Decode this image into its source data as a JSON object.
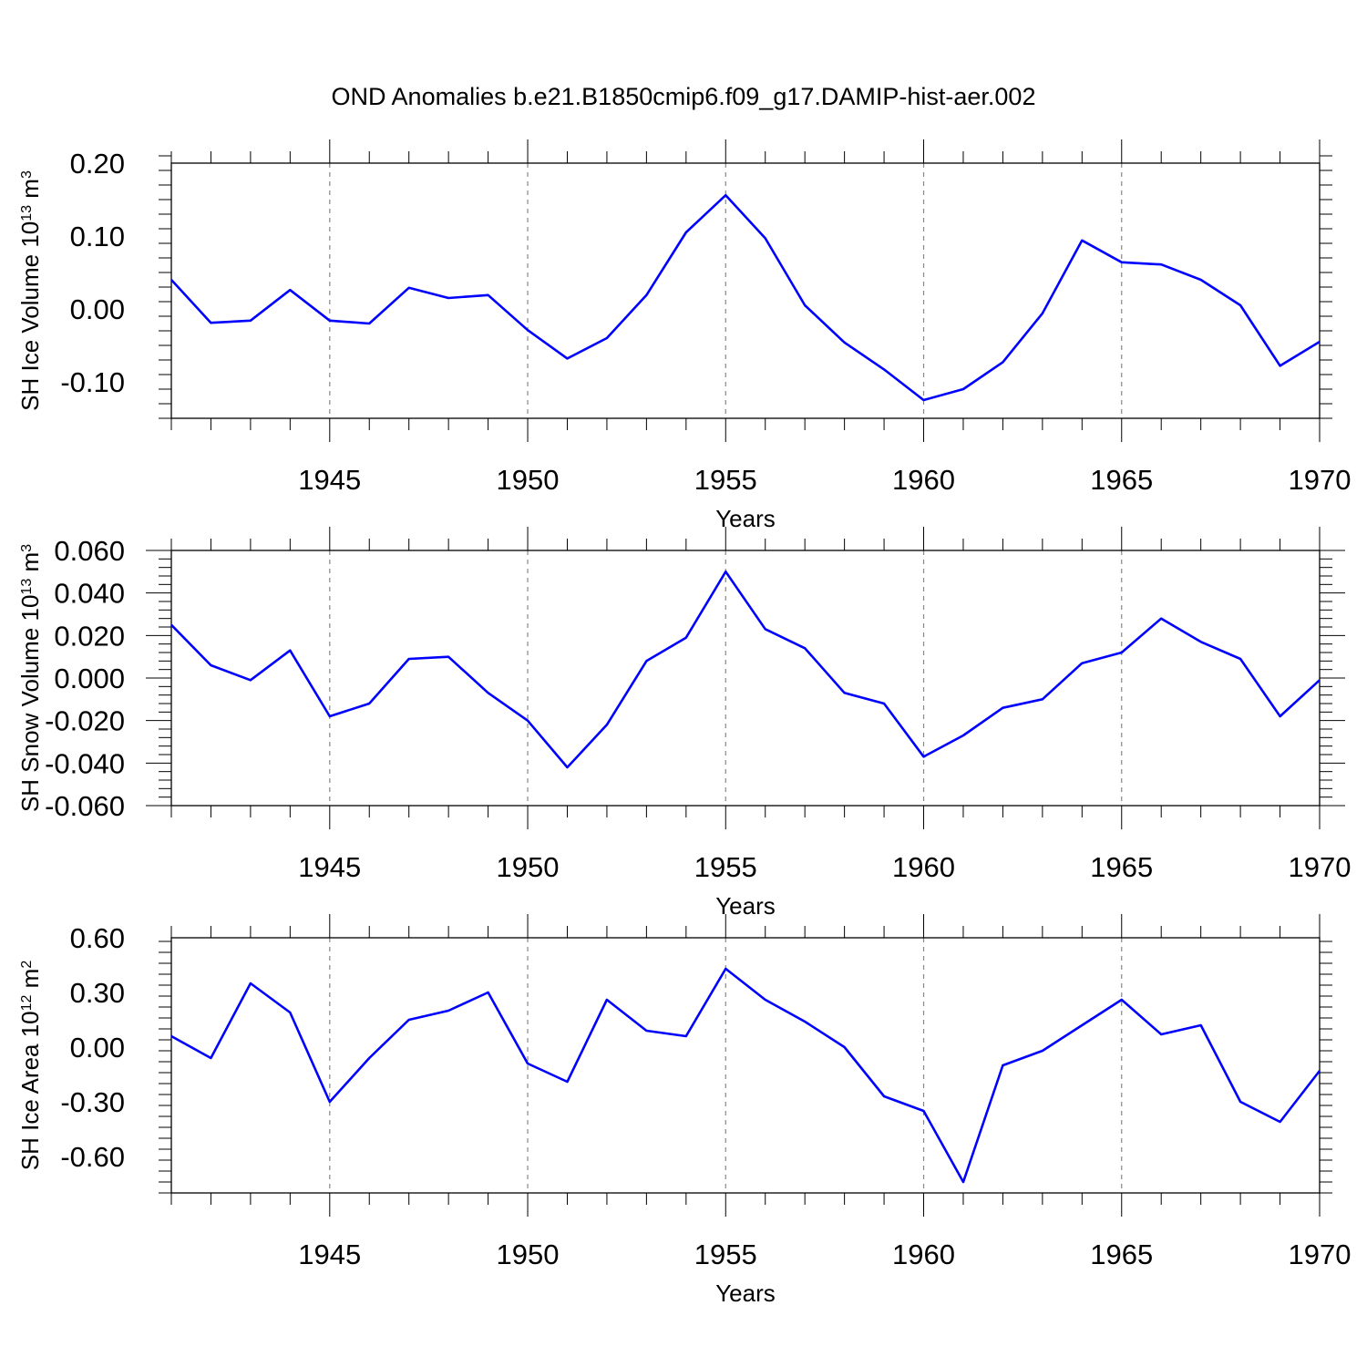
{
  "title": "OND Anomalies b.e21.B1850cmip6.f09_g17.DAMIP-hist-aer.002",
  "line_color": "#0000ff",
  "chart_data": [
    {
      "type": "line",
      "ylabel_main": "SH Ice Volume 10",
      "ylabel_exp": "13",
      "ylabel_unit": "m",
      "ylabel_unit_exp": "3",
      "xlabel": "Years",
      "xlim": [
        1941,
        1970
      ],
      "ylim": [
        -0.15,
        0.2
      ],
      "yticks": [
        0.2,
        0.1,
        0.0,
        -0.1
      ],
      "ytick_labels": [
        "0.20",
        "0.10",
        "0.00",
        "-0.10"
      ],
      "xticks": [
        1945,
        1950,
        1955,
        1960,
        1965,
        1970
      ],
      "xtick_labels": [
        "1945",
        "1950",
        "1955",
        "1960",
        "1965",
        "1970"
      ],
      "x": [
        1941,
        1942,
        1943,
        1944,
        1945,
        1946,
        1947,
        1948,
        1949,
        1950,
        1951,
        1952,
        1953,
        1954,
        1955,
        1956,
        1957,
        1958,
        1959,
        1960,
        1961,
        1962,
        1963,
        1964,
        1965,
        1966,
        1967,
        1968,
        1969,
        1970
      ],
      "values": [
        0.04,
        -0.019,
        -0.016,
        0.026,
        -0.016,
        -0.02,
        0.029,
        0.015,
        0.019,
        -0.029,
        -0.068,
        -0.04,
        0.019,
        0.105,
        0.156,
        0.097,
        0.005,
        -0.046,
        -0.083,
        -0.125,
        -0.11,
        -0.073,
        -0.006,
        0.094,
        0.064,
        0.061,
        0.04,
        0.005,
        -0.078,
        -0.045
      ]
    },
    {
      "type": "line",
      "ylabel_main": "SH Snow Volume 10",
      "ylabel_exp": "13",
      "ylabel_unit": "m",
      "ylabel_unit_exp": "3",
      "xlabel": "Years",
      "xlim": [
        1941,
        1970
      ],
      "ylim": [
        -0.06,
        0.06
      ],
      "yticks": [
        0.06,
        0.04,
        0.02,
        0.0,
        -0.02,
        -0.04,
        -0.06
      ],
      "ytick_labels": [
        "0.060",
        "0.040",
        "0.020",
        "0.000",
        "-0.020",
        "-0.040",
        "-0.060"
      ],
      "xticks": [
        1945,
        1950,
        1955,
        1960,
        1965,
        1970
      ],
      "xtick_labels": [
        "1945",
        "1950",
        "1955",
        "1960",
        "1965",
        "1970"
      ],
      "x": [
        1941,
        1942,
        1943,
        1944,
        1945,
        1946,
        1947,
        1948,
        1949,
        1950,
        1951,
        1952,
        1953,
        1954,
        1955,
        1956,
        1957,
        1958,
        1959,
        1960,
        1961,
        1962,
        1963,
        1964,
        1965,
        1966,
        1967,
        1968,
        1969,
        1970
      ],
      "values": [
        0.025,
        0.006,
        -0.001,
        0.013,
        -0.018,
        -0.012,
        0.009,
        0.01,
        -0.007,
        -0.02,
        -0.042,
        -0.022,
        0.008,
        0.019,
        0.05,
        0.023,
        0.014,
        -0.007,
        -0.012,
        -0.037,
        -0.027,
        -0.014,
        -0.01,
        0.007,
        0.012,
        0.028,
        0.017,
        0.009,
        -0.018,
        -0.001
      ]
    },
    {
      "type": "line",
      "ylabel_main": "SH Ice Area 10",
      "ylabel_exp": "12",
      "ylabel_unit": "m",
      "ylabel_unit_exp": "2",
      "xlabel": "Years",
      "xlim": [
        1941,
        1970
      ],
      "ylim": [
        -0.8,
        0.6
      ],
      "yticks": [
        0.6,
        0.3,
        0.0,
        -0.3,
        -0.6
      ],
      "ytick_labels": [
        "0.60",
        "0.30",
        "0.00",
        "-0.30",
        "-0.60"
      ],
      "xticks": [
        1945,
        1950,
        1955,
        1960,
        1965,
        1970
      ],
      "xtick_labels": [
        "1945",
        "1950",
        "1955",
        "1960",
        "1965",
        "1970"
      ],
      "x": [
        1941,
        1942,
        1943,
        1944,
        1945,
        1946,
        1947,
        1948,
        1949,
        1950,
        1951,
        1952,
        1953,
        1954,
        1955,
        1956,
        1957,
        1958,
        1959,
        1960,
        1961,
        1962,
        1963,
        1964,
        1965,
        1966,
        1967,
        1968,
        1969,
        1970
      ],
      "values": [
        0.06,
        -0.06,
        0.35,
        0.19,
        -0.3,
        -0.06,
        0.15,
        0.2,
        0.3,
        -0.09,
        -0.19,
        0.26,
        0.09,
        0.06,
        0.43,
        0.26,
        0.14,
        0.0,
        -0.27,
        -0.35,
        -0.74,
        -0.1,
        -0.02,
        0.12,
        0.26,
        0.07,
        0.12,
        -0.3,
        -0.41,
        -0.13
      ]
    }
  ]
}
